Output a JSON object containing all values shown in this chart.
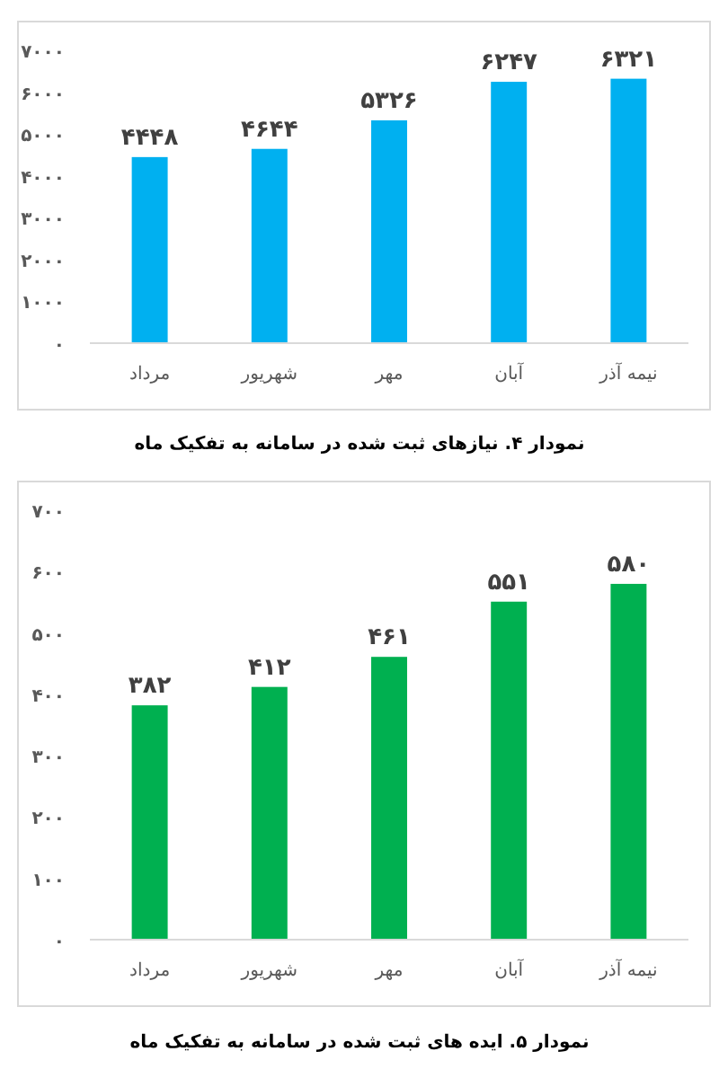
{
  "chart_data": [
    {
      "type": "bar",
      "title": "نمودار ۴. نیازهای ثبت شده در سامانه به تفکیک ماه",
      "categories": [
        "مرداد",
        "شهریور",
        "مهر",
        "آبان",
        "نیمه آذر"
      ],
      "color": "#00b0f0",
      "values": [
        4448,
        4644,
        5326,
        6247,
        6321
      ],
      "value_labels": [
        "۴۴۴۸",
        "۴۶۴۴",
        "۵۳۲۶",
        "۶۲۴۷",
        "۶۳۲۱"
      ],
      "ylim": [
        0,
        7000
      ],
      "yticks": [
        {
          "value": 0,
          "label": "۰"
        },
        {
          "value": 1000,
          "label": "۱۰۰۰"
        },
        {
          "value": 2000,
          "label": "۲۰۰۰"
        },
        {
          "value": 3000,
          "label": "۳۰۰۰"
        },
        {
          "value": 4000,
          "label": "۴۰۰۰"
        },
        {
          "value": 5000,
          "label": "۵۰۰۰"
        },
        {
          "value": 6000,
          "label": "۶۰۰۰"
        },
        {
          "value": 7000,
          "label": "۷۰۰۰"
        }
      ]
    },
    {
      "type": "bar",
      "title": "نمودار ۵. ایده های ثبت شده در سامانه به تفکیک ماه",
      "categories": [
        "مرداد",
        "شهریور",
        "مهر",
        "آبان",
        "نیمه آذر"
      ],
      "color": "#00b050",
      "values": [
        382,
        412,
        461,
        551,
        580
      ],
      "value_labels": [
        "۳۸۲",
        "۴۱۲",
        "۴۶۱",
        "۵۵۱",
        "۵۸۰"
      ],
      "ylim": [
        0,
        700
      ],
      "yticks": [
        {
          "value": 0,
          "label": "۰"
        },
        {
          "value": 100,
          "label": "۱۰۰"
        },
        {
          "value": 200,
          "label": "۲۰۰"
        },
        {
          "value": 300,
          "label": "۳۰۰"
        },
        {
          "value": 400,
          "label": "۴۰۰"
        },
        {
          "value": 500,
          "label": "۵۰۰"
        },
        {
          "value": 600,
          "label": "۶۰۰"
        },
        {
          "value": 700,
          "label": "۷۰۰"
        }
      ]
    }
  ]
}
